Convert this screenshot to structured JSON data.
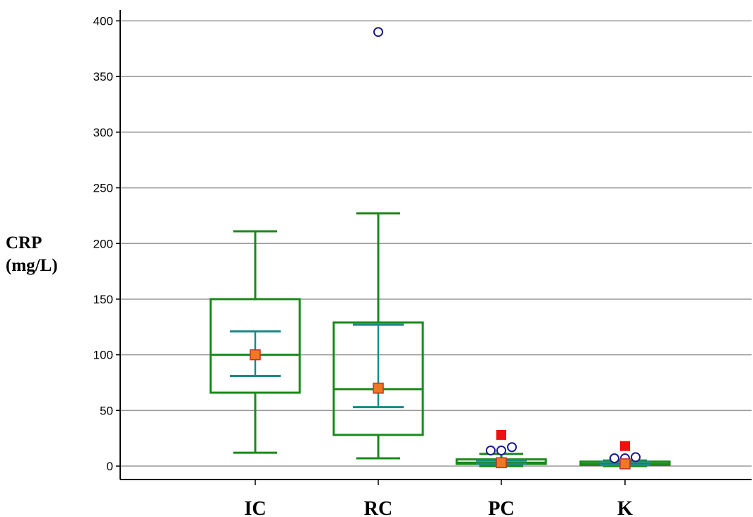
{
  "chart_data": {
    "type": "box",
    "ylabel_line1": "CRP",
    "ylabel_line2": "(mg/L)",
    "ylim": [
      0,
      400
    ],
    "yticks": [
      0,
      50,
      100,
      150,
      200,
      250,
      300,
      350,
      400
    ],
    "ytick_labels": [
      "0",
      "50",
      "100",
      "150",
      "200",
      "250",
      "300",
      "350",
      "400"
    ],
    "grid": true,
    "colors": {
      "box": "#1a8a1a",
      "ci": "#1a8a8a",
      "mean": "#f07820",
      "mean_border": "#c03030",
      "outlier": "#1a1a8a",
      "far_outlier": "#ee1111",
      "grid": "#999999"
    },
    "categories": [
      "IC",
      "RC",
      "PC",
      "K"
    ],
    "boxes": [
      {
        "category": "IC",
        "whisker_low": 12,
        "q1": 66,
        "median": 100,
        "q3": 150,
        "whisker_high": 211,
        "mean": 100,
        "ci_low": 81,
        "ci_high": 121,
        "outliers": [],
        "far_outliers": []
      },
      {
        "category": "RC",
        "whisker_low": 7,
        "q1": 28,
        "median": 69,
        "q3": 129,
        "whisker_high": 227,
        "mean": 70,
        "ci_low": 53,
        "ci_high": 127,
        "outliers": [
          390
        ],
        "far_outliers": []
      },
      {
        "category": "PC",
        "whisker_low": 0,
        "q1": 2,
        "median": 3,
        "q3": 6,
        "whisker_high": 11,
        "mean": 3,
        "ci_low": 2,
        "ci_high": 5,
        "outliers": [
          14,
          14,
          17
        ],
        "far_outliers": [
          28
        ]
      },
      {
        "category": "K",
        "whisker_low": 0,
        "q1": 1,
        "median": 2,
        "q3": 4,
        "whisker_high": 5,
        "mean": 2,
        "ci_low": 1,
        "ci_high": 4,
        "outliers": [
          7,
          7,
          8
        ],
        "far_outliers": [
          18
        ]
      }
    ]
  }
}
